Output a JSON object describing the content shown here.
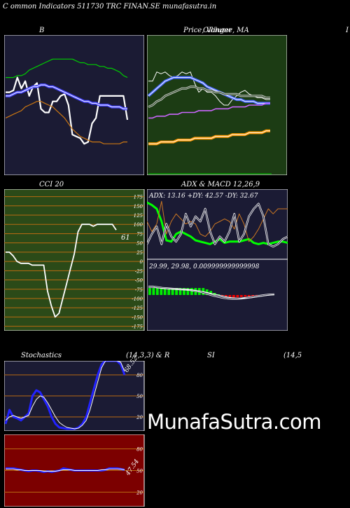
{
  "header": {
    "title": "C ommon  Indicators 511730  TRC FINAN.SE munafasutra.in",
    "watermark": "MunafaSutra.com"
  },
  "panels": {
    "bb_title": "B",
    "price_title": "Price,  Volume,  MA",
    "price_title_overlap": "Ollinger",
    "edge_letter": "I",
    "cci_title": "CCI 20",
    "cci_value": "61",
    "adx_title": "ADX  & MACD 12,26,9",
    "adx_text": "ADX: 13.16  +DY: 42.57 -DY: 32.67",
    "macd_text": "29.99,  29.98,  0.009999999999998",
    "stoch_title_left": "Stochastics",
    "stoch_title_mid": "(14,3,3) & R",
    "stoch_title_si": "SI",
    "stoch_title_right": "(14,5",
    "stoch_value": "68.52",
    "rsi_value": "47.54"
  },
  "colors": {
    "panel_bg": "#1b1b34",
    "price_bg": "#1c3c14",
    "cci_bg": "#2b4a18",
    "rsi_bg": "#7c0000",
    "grid": "#b86a12"
  },
  "chart_data": [
    {
      "type": "line",
      "name": "bollinger",
      "series": [
        {
          "role": "price",
          "color": "#ffffff",
          "values": [
            42,
            42,
            43,
            50,
            44,
            48,
            40,
            45,
            47,
            33,
            31,
            31,
            37,
            37,
            40,
            41,
            35,
            19,
            18,
            17,
            14,
            15,
            25,
            28,
            40,
            40,
            40,
            40,
            40,
            40,
            40,
            27
          ]
        },
        {
          "role": "upper",
          "color": "#00cc00",
          "values": [
            50,
            50,
            50,
            51,
            51,
            52,
            54,
            55,
            56,
            57,
            58,
            59,
            60,
            60,
            60,
            60,
            60,
            60,
            59,
            58,
            58,
            57,
            57,
            57,
            56,
            56,
            55,
            55,
            54,
            53,
            51,
            50
          ]
        },
        {
          "role": "middle",
          "color": "#4444ff",
          "values": [
            40,
            40,
            41,
            42,
            42,
            43,
            44,
            45,
            45,
            46,
            46,
            45,
            45,
            44,
            43,
            42,
            41,
            40,
            39,
            38,
            37,
            37,
            36,
            36,
            35,
            35,
            35,
            34,
            34,
            34,
            33,
            33
          ]
        },
        {
          "role": "lower",
          "color": "#cc7711",
          "values": [
            28,
            29,
            30,
            31,
            32,
            34,
            35,
            36,
            37,
            37,
            36,
            35,
            34,
            32,
            30,
            28,
            25,
            22,
            20,
            18,
            17,
            16,
            15,
            15,
            15,
            14,
            14,
            14,
            14,
            14,
            15,
            15
          ]
        }
      ],
      "ylim": [
        0,
        70
      ]
    },
    {
      "type": "line",
      "name": "price_ma",
      "series": [
        {
          "role": "price",
          "color": "#ffffff",
          "values": [
            48,
            48,
            53,
            52,
            53,
            51,
            50,
            51,
            53,
            52,
            53,
            47,
            42,
            44,
            42,
            42,
            40,
            37,
            35,
            35,
            38,
            40,
            42,
            43,
            41,
            40,
            39,
            39,
            38,
            38
          ]
        },
        {
          "role": "ma1",
          "color": "#4466ff",
          "values": [
            40,
            42,
            44,
            46,
            48,
            49,
            50,
            50,
            50,
            50,
            50,
            49,
            48,
            47,
            45,
            44,
            43,
            42,
            41,
            40,
            39,
            38,
            38,
            37,
            37,
            37,
            36,
            36,
            36,
            36
          ]
        },
        {
          "role": "ma2",
          "color": "#cccccc",
          "values": [
            34,
            35,
            37,
            38,
            40,
            41,
            42,
            43,
            44,
            44,
            45,
            45,
            44,
            44,
            43,
            43,
            42,
            42,
            41,
            41,
            41,
            41,
            40,
            40,
            40,
            40,
            40,
            40,
            39,
            39
          ]
        },
        {
          "role": "ma3",
          "color": "#cc66ff",
          "values": [
            28,
            28,
            29,
            29,
            29,
            30,
            30,
            30,
            31,
            31,
            31,
            31,
            32,
            32,
            32,
            32,
            33,
            33,
            33,
            33,
            34,
            34,
            34,
            34,
            35,
            35,
            35,
            35,
            36,
            36
          ]
        },
        {
          "role": "ma4",
          "color": "#ff9900",
          "values": [
            14,
            14,
            14,
            15,
            15,
            15,
            15,
            16,
            16,
            16,
            16,
            17,
            17,
            17,
            17,
            17,
            18,
            18,
            18,
            18,
            19,
            19,
            19,
            19,
            20,
            20,
            20,
            20,
            21,
            21
          ]
        }
      ],
      "ylim": [
        0,
        70
      ]
    },
    {
      "type": "line",
      "name": "cci",
      "ticks": [
        175,
        150,
        125,
        100,
        75,
        50,
        25,
        0,
        -25,
        -50,
        -75,
        -100,
        -125,
        -150,
        -175
      ],
      "values": [
        25,
        25,
        15,
        0,
        -5,
        -5,
        -5,
        -10,
        -10,
        -10,
        -10,
        -80,
        -120,
        -150,
        -140,
        -100,
        -60,
        -20,
        20,
        80,
        100,
        100,
        100,
        95,
        100,
        100,
        100,
        100,
        100,
        85
      ],
      "ylim": [
        -187,
        195
      ]
    },
    {
      "type": "line",
      "name": "adx",
      "series": [
        {
          "role": "adx",
          "color": "#00ff00",
          "values": [
            45,
            43,
            40,
            30,
            15,
            14,
            20,
            22,
            20,
            18,
            15,
            14,
            13,
            12,
            14,
            16,
            13,
            14,
            14,
            14,
            15,
            16,
            13,
            12,
            13,
            12,
            13,
            14,
            14,
            13
          ]
        },
        {
          "role": "+di",
          "color": "#cc7722",
          "values": [
            30,
            22,
            28,
            46,
            20,
            30,
            36,
            32,
            28,
            30,
            28,
            20,
            18,
            22,
            28,
            30,
            32,
            30,
            24,
            36,
            28,
            14,
            18,
            24,
            32,
            40,
            36,
            40,
            40,
            40
          ]
        },
        {
          "role": "-di",
          "color": "#ffffff",
          "values": [
            12,
            20,
            26,
            12,
            28,
            18,
            14,
            20,
            36,
            26,
            34,
            30,
            40,
            22,
            12,
            18,
            14,
            22,
            36,
            14,
            20,
            34,
            40,
            44,
            34,
            12,
            10,
            12,
            16,
            18
          ]
        }
      ],
      "ylim": [
        0,
        50
      ]
    },
    {
      "type": "bar",
      "name": "macd_hist",
      "values": [
        1,
        1,
        1,
        1,
        1,
        1,
        1,
        1,
        1,
        1,
        1,
        1,
        1,
        1,
        1,
        0.8,
        0.6,
        0.3,
        0.1,
        -0.1,
        -0.2,
        -0.3,
        -0.35,
        -0.35,
        -0.3,
        -0.25,
        -0.2,
        -0.15,
        -0.1,
        -0.05,
        -0.02,
        0,
        0
      ],
      "macd": [
        1.2,
        1.2,
        1.1,
        1.0,
        0.95,
        0.9,
        0.85,
        0.8,
        0.78,
        0.7,
        0.6,
        0.5,
        0.3,
        0.1,
        -0.1,
        -0.25,
        -0.4,
        -0.5,
        -0.55,
        -0.55,
        -0.5,
        -0.4,
        -0.3,
        -0.2,
        -0.1,
        0,
        0.05,
        0.1
      ],
      "signal": [
        1.1,
        1.1,
        1.0,
        0.95,
        0.9,
        0.88,
        0.86,
        0.82,
        0.78,
        0.72,
        0.65,
        0.55,
        0.45,
        0.3,
        0.15,
        0,
        -0.15,
        -0.3,
        -0.4,
        -0.45,
        -0.48,
        -0.45,
        -0.4,
        -0.3,
        -0.2,
        -0.1,
        0,
        0.05
      ]
    },
    {
      "type": "line",
      "name": "stochastics",
      "ticks": [
        80,
        50,
        20
      ],
      "series": [
        {
          "role": "k",
          "color": "#2222ff",
          "values": [
            10,
            30,
            20,
            18,
            15,
            20,
            25,
            50,
            58,
            55,
            45,
            35,
            20,
            10,
            5,
            4,
            3,
            3,
            3,
            5,
            10,
            20,
            40,
            60,
            80,
            95,
            100,
            100,
            100,
            100,
            95,
            80
          ]
        },
        {
          "role": "d",
          "color": "#ffffff",
          "values": [
            15,
            20,
            22,
            20,
            18,
            20,
            22,
            35,
            45,
            50,
            48,
            40,
            30,
            20,
            12,
            8,
            5,
            4,
            3,
            4,
            8,
            15,
            30,
            50,
            70,
            90,
            100,
            100,
            100,
            100,
            98,
            85
          ]
        }
      ],
      "ylim": [
        0,
        100
      ]
    },
    {
      "type": "line",
      "name": "rsi",
      "ticks": [
        80,
        50,
        20
      ],
      "series": [
        {
          "role": "rsi",
          "color": "#2222ff",
          "values": [
            53,
            53,
            53,
            52,
            51,
            50,
            49,
            50,
            50,
            49,
            48,
            49,
            48,
            49,
            50,
            53,
            52,
            51,
            50,
            50,
            50,
            50,
            50,
            50,
            50,
            50,
            51,
            53,
            53,
            53,
            52,
            51
          ]
        },
        {
          "role": "signal",
          "color": "#ffffff",
          "values": [
            52,
            52,
            52,
            51,
            51,
            50,
            50,
            50,
            50,
            50,
            49,
            49,
            49,
            49,
            50,
            51,
            51,
            51,
            50,
            50,
            50,
            50,
            50,
            50,
            50,
            51,
            51,
            52,
            52,
            52,
            52,
            51
          ]
        }
      ],
      "ylim": [
        0,
        100
      ]
    }
  ]
}
